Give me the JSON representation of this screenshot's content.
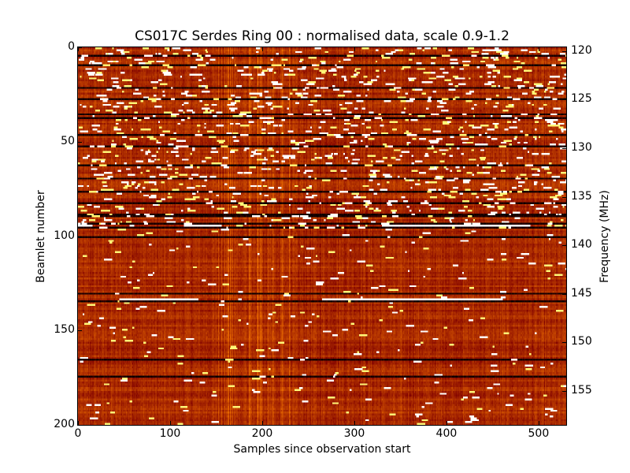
{
  "chart_data": {
    "type": "heatmap",
    "title": "CS017C Serdes Ring 00 : normalised data, scale 0.9-1.2",
    "xlabel": "Samples since observation start",
    "ylabel": "Beamlet number",
    "y2label": "Frequency (MHz)",
    "xlim": [
      0,
      530
    ],
    "ylim": [
      200,
      0
    ],
    "y2lim": [
      158.5,
      119.6
    ],
    "xticks": [
      0,
      100,
      200,
      300,
      400,
      500
    ],
    "yticks": [
      0,
      50,
      100,
      150,
      200
    ],
    "y2ticks": [
      120,
      125,
      130,
      135,
      140,
      145,
      150,
      155
    ],
    "color_scale": {
      "min": 0.9,
      "max": 1.2,
      "colormap": "afmhot"
    },
    "n_beamlets": 200,
    "n_samples": 530,
    "background_value": 1.0,
    "dark_rows": [
      4,
      9,
      21,
      27,
      35,
      37,
      46,
      52,
      62,
      69,
      76,
      82,
      88,
      89,
      93,
      95,
      100,
      130,
      134,
      165,
      174
    ],
    "bright_streaks": [
      {
        "beamlet": 94,
        "start": 0,
        "end": 15
      },
      {
        "beamlet": 94,
        "start": 115,
        "end": 155
      },
      {
        "beamlet": 94,
        "start": 330,
        "end": 490
      },
      {
        "beamlet": 133,
        "start": 45,
        "end": 130
      },
      {
        "beamlet": 133,
        "start": 265,
        "end": 460
      }
    ],
    "noisy_region_beamlets": [
      0,
      95
    ],
    "quiet_region_beamlets": [
      96,
      200
    ]
  }
}
